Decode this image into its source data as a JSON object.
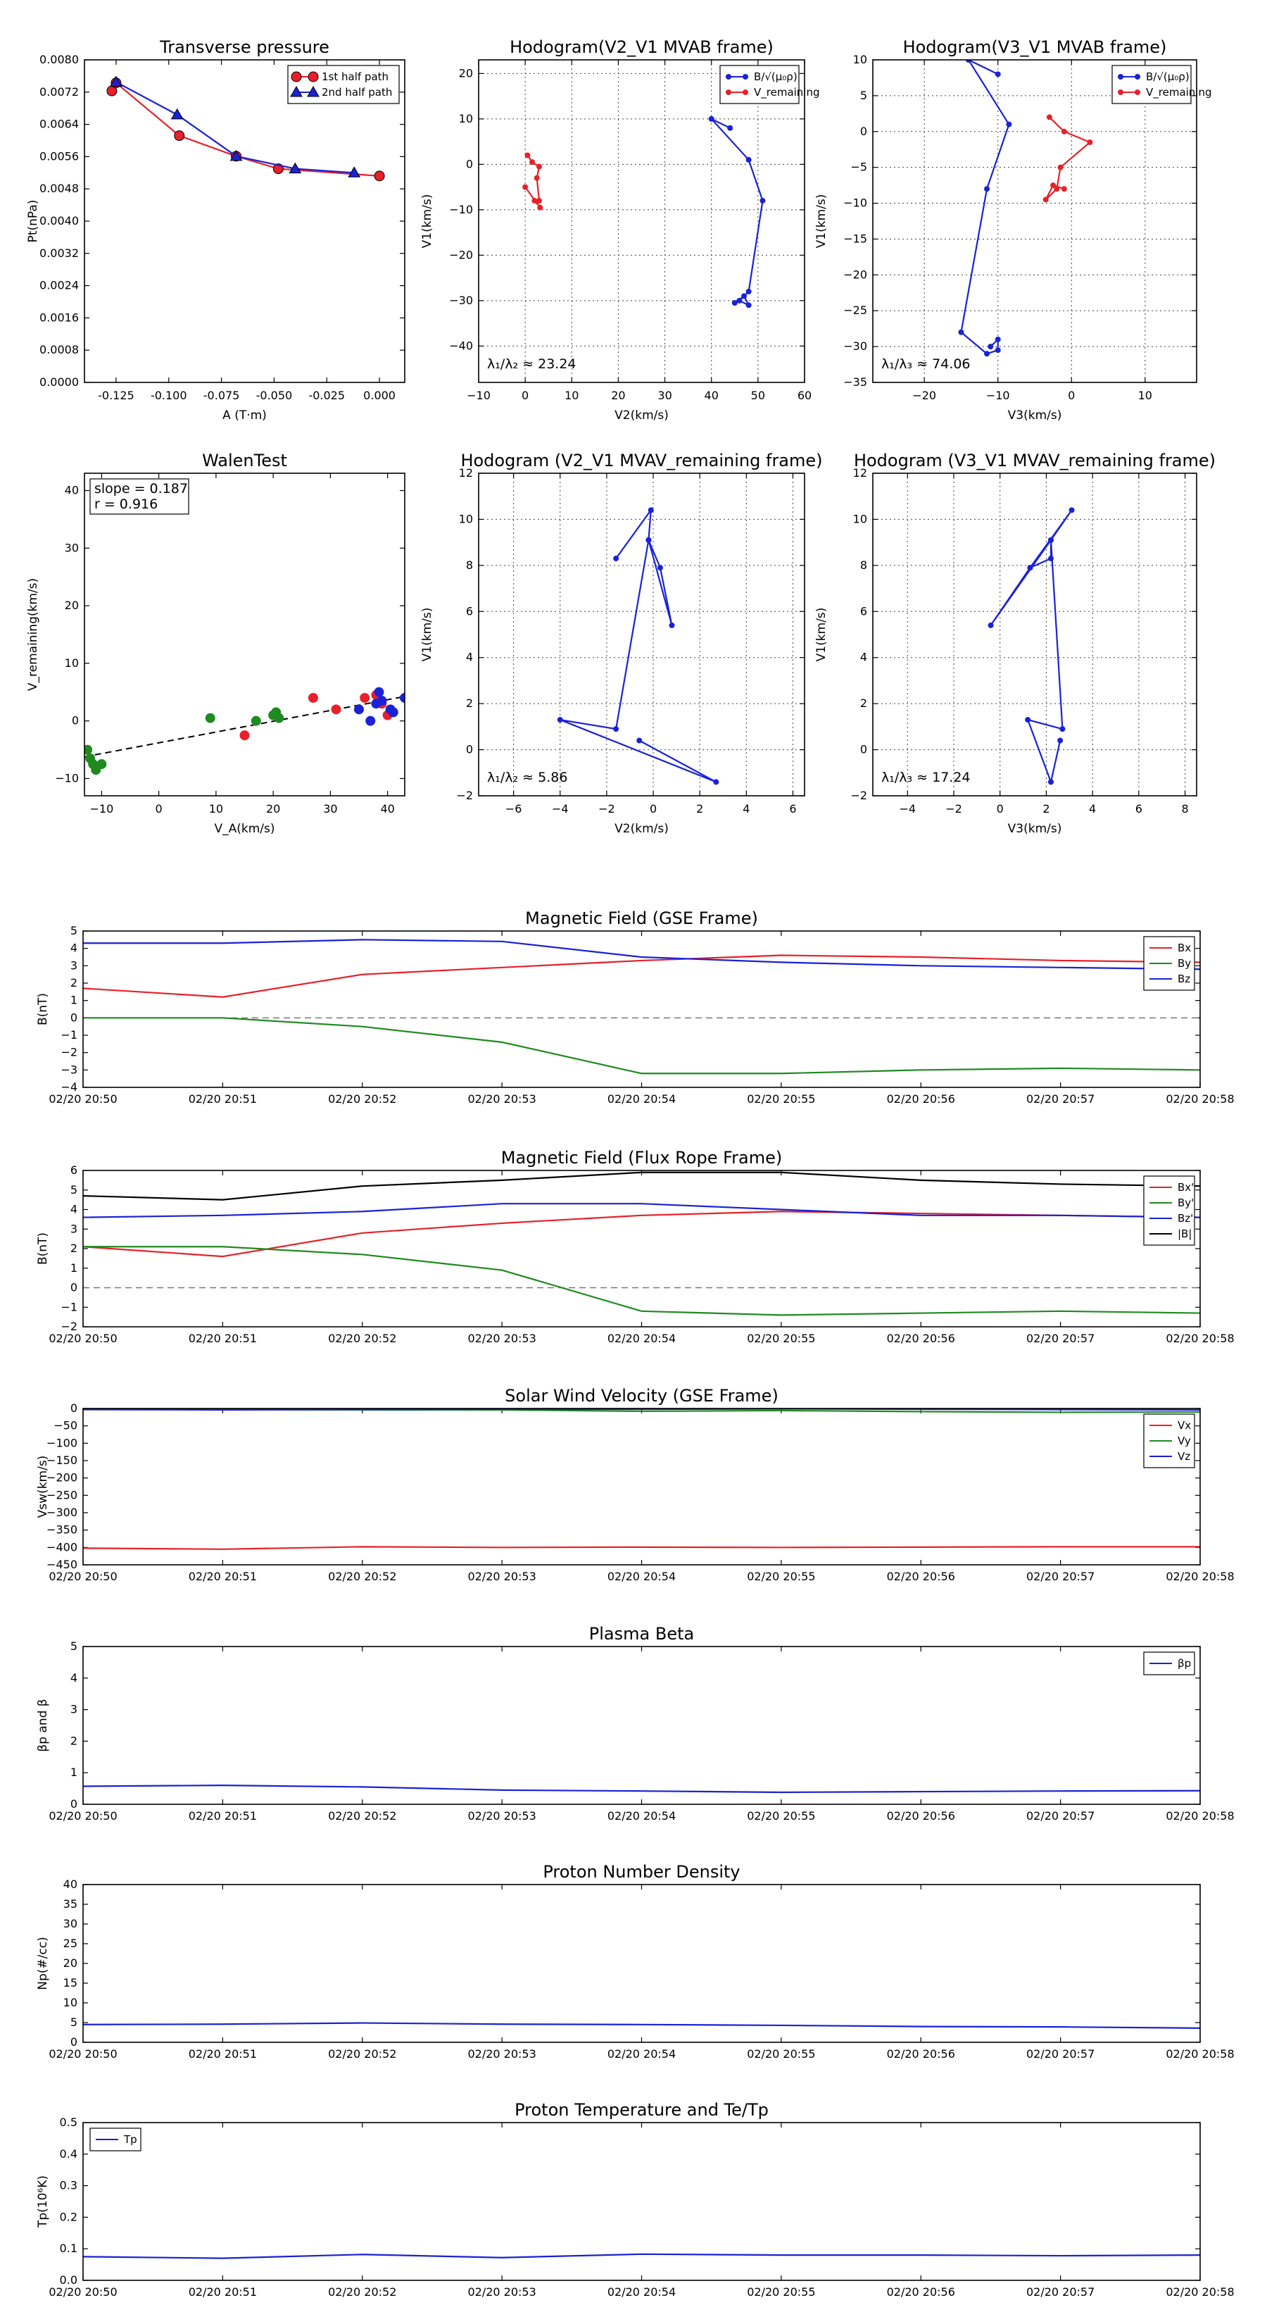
{
  "colors": {
    "red": "#e8202a",
    "blue": "#1a22d6",
    "green": "#1f8a1f",
    "black": "#000000",
    "gray": "#777777"
  },
  "chart_data": [
    {
      "id": "pt",
      "type": "line",
      "title": "Transverse pressure",
      "xlabel": "A (T·m)",
      "ylabel": "Pt(nPa)",
      "xlim": [
        -0.14,
        0.012
      ],
      "ylim": [
        0,
        0.008
      ],
      "xticks": [
        -0.125,
        -0.1,
        -0.075,
        -0.05,
        -0.025,
        0.0
      ],
      "xtick_labels": [
        "-0.125",
        "-0.100",
        "-0.075",
        "-0.050",
        "-0.025",
        "0.000"
      ],
      "yticks": [
        0,
        0.0008,
        0.0016,
        0.0024,
        0.0032,
        0.004,
        0.0048,
        0.0056,
        0.0064,
        0.0072,
        0.008
      ],
      "ytick_labels": [
        "0.0000",
        "0.0008",
        "0.0016",
        "0.0024",
        "0.0032",
        "0.0040",
        "0.0048",
        "0.0056",
        "0.0064",
        "0.0072",
        "0.0080"
      ],
      "grid": false,
      "legend": "top-right",
      "series": [
        {
          "name": "1st half path",
          "color": "red",
          "marker": "circle",
          "x": [
            -0.127,
            -0.125,
            -0.095,
            -0.068,
            -0.048,
            0.0
          ],
          "y": [
            0.00723,
            0.00743,
            0.00612,
            0.00561,
            0.0053,
            0.00512
          ]
        },
        {
          "name": "2nd half path",
          "color": "blue",
          "marker": "triangle",
          "x": [
            -0.125,
            -0.096,
            -0.068,
            -0.04,
            -0.012
          ],
          "y": [
            0.00745,
            0.00664,
            0.00561,
            0.0053,
            0.0052
          ]
        }
      ]
    },
    {
      "id": "hodo1",
      "type": "line",
      "title": "Hodogram(V2_V1 MVAB frame)",
      "xlabel": "V2(km/s)",
      "ylabel": "V1(km/s)",
      "xlim": [
        -10,
        60
      ],
      "ylim": [
        -48,
        23
      ],
      "xticks": [
        -10,
        0,
        10,
        20,
        30,
        40,
        50,
        60
      ],
      "xtick_labels": [
        "−10",
        "0",
        "10",
        "20",
        "30",
        "40",
        "50",
        "60"
      ],
      "yticks": [
        -40,
        -30,
        -20,
        -10,
        0,
        10,
        20
      ],
      "ytick_labels": [
        "−40",
        "−30",
        "−20",
        "−10",
        "0",
        "10",
        "20"
      ],
      "grid": true,
      "legend": "top-right",
      "annotation": "λ₁/λ₂ ≈ 23.24",
      "series": [
        {
          "name": "B/√(μ₀ρ)",
          "color": "blue",
          "marker": "dot",
          "x": [
            44,
            40,
            48,
            51,
            48,
            46,
            48,
            47,
            45
          ],
          "y": [
            8,
            10,
            1,
            -8,
            -28,
            -30,
            -31,
            -29,
            -30.5
          ]
        },
        {
          "name": "V_remaining",
          "color": "red",
          "marker": "dot",
          "x": [
            0.5,
            1.5,
            3,
            2.5,
            3,
            2,
            3.2,
            0
          ],
          "y": [
            2,
            0.5,
            -0.5,
            -3,
            -8,
            -8,
            -9.5,
            -5
          ]
        }
      ]
    },
    {
      "id": "hodo2",
      "type": "line",
      "title": "Hodogram(V3_V1 MVAB frame)",
      "xlabel": "V3(km/s)",
      "ylabel": "V1(km/s)",
      "xlim": [
        -27,
        17
      ],
      "ylim": [
        -35,
        10
      ],
      "xticks": [
        -20,
        -10,
        0,
        10
      ],
      "xtick_labels": [
        "−20",
        "−10",
        "0",
        "10"
      ],
      "yticks": [
        -35,
        -30,
        -25,
        -20,
        -15,
        -10,
        -5,
        0,
        5,
        10
      ],
      "ytick_labels": [
        "−35",
        "−30",
        "−25",
        "−20",
        "−15",
        "−10",
        "−5",
        "0",
        "5",
        "10"
      ],
      "grid": true,
      "legend": "top-right",
      "annotation": "λ₁/λ₃ ≈ 74.06",
      "series": [
        {
          "name": "B/√(μ₀ρ)",
          "color": "blue",
          "marker": "dot",
          "x": [
            -10,
            -14,
            -8.5,
            -11.5,
            -15,
            -11.5,
            -10,
            -10,
            -11
          ],
          "y": [
            8,
            10,
            1,
            -8,
            -28,
            -31,
            -30.5,
            -29,
            -30
          ]
        },
        {
          "name": "V_remaining",
          "color": "red",
          "marker": "dot",
          "x": [
            -3,
            -1,
            2.5,
            -1.5,
            -2,
            -3.5,
            -2.5,
            -1
          ],
          "y": [
            2,
            0,
            -1.5,
            -5,
            -8,
            -9.5,
            -7.5,
            -8
          ]
        }
      ]
    },
    {
      "id": "walen",
      "type": "scatter",
      "title": "WalenTest",
      "xlabel": "V_A(km/s)",
      "ylabel": "V_remaining(km/s)",
      "xlim": [
        -13,
        43
      ],
      "ylim": [
        -13,
        43
      ],
      "xticks": [
        -10,
        0,
        10,
        20,
        30,
        40
      ],
      "xtick_labels": [
        "−10",
        "0",
        "10",
        "20",
        "30",
        "40"
      ],
      "yticks": [
        -10,
        0,
        10,
        20,
        30,
        40
      ],
      "ytick_labels": [
        "−10",
        "0",
        "10",
        "20",
        "30",
        "40"
      ],
      "grid": false,
      "annotation_lines": [
        "slope = 0.187",
        "r = 0.916"
      ],
      "fit": {
        "slope": 0.187,
        "intercept": -3.8
      },
      "series": [
        {
          "color": "green",
          "x": [
            -12.5,
            -12,
            -11.5,
            -11,
            -10,
            9,
            17,
            20,
            20.5,
            21
          ],
          "y": [
            -5,
            -6.5,
            -7.5,
            -8.5,
            -7.5,
            0.5,
            0,
            1,
            1.5,
            0.5
          ]
        },
        {
          "color": "red",
          "x": [
            15,
            27,
            31,
            36,
            38,
            39,
            40
          ],
          "y": [
            -2.5,
            4,
            2,
            4,
            4.5,
            3,
            1
          ]
        },
        {
          "color": "blue",
          "x": [
            35,
            37,
            38,
            38.5,
            39,
            40.5,
            41,
            43
          ],
          "y": [
            2,
            0,
            3,
            5,
            3.5,
            2,
            1.5,
            4
          ]
        }
      ]
    },
    {
      "id": "hodo3",
      "type": "line",
      "title": "Hodogram (V2_V1 MVAV_remaining frame)",
      "xlabel": "V2(km/s)",
      "ylabel": "V1(km/s)",
      "xlim": [
        -7.5,
        6.5
      ],
      "ylim": [
        -2,
        12
      ],
      "xticks": [
        -6,
        -4,
        -2,
        0,
        2,
        4,
        6
      ],
      "xtick_labels": [
        "−6",
        "−4",
        "−2",
        "0",
        "2",
        "4",
        "6"
      ],
      "yticks": [
        -2,
        0,
        2,
        4,
        6,
        8,
        10,
        12
      ],
      "ytick_labels": [
        "−2",
        "0",
        "2",
        "4",
        "6",
        "8",
        "10",
        "12"
      ],
      "grid": true,
      "annotation": "λ₁/λ₂ ≈ 5.86",
      "series": [
        {
          "color": "blue",
          "marker": "dot",
          "x": [
            -1.6,
            -0.1,
            -0.2,
            0.3,
            0.8,
            -0.2,
            -1.6,
            -4,
            2.7,
            -0.6
          ],
          "y": [
            8.3,
            10.4,
            9.1,
            7.9,
            5.4,
            9.1,
            0.9,
            1.3,
            -1.4,
            0.4
          ]
        }
      ]
    },
    {
      "id": "hodo4",
      "type": "line",
      "title": "Hodogram (V3_V1 MVAV_remaining frame)",
      "xlabel": "V3(km/s)",
      "ylabel": "V1(km/s)",
      "xlim": [
        -5.5,
        8.5
      ],
      "ylim": [
        -2,
        12
      ],
      "xticks": [
        -4,
        -2,
        0,
        2,
        4,
        6,
        8
      ],
      "xtick_labels": [
        "−4",
        "−2",
        "0",
        "2",
        "4",
        "6",
        "8"
      ],
      "yticks": [
        -2,
        0,
        2,
        4,
        6,
        8,
        10,
        12
      ],
      "ytick_labels": [
        "−2",
        "0",
        "2",
        "4",
        "6",
        "8",
        "10",
        "12"
      ],
      "grid": true,
      "annotation": "λ₁/λ₃ ≈ 17.24",
      "series": [
        {
          "color": "blue",
          "marker": "dot",
          "x": [
            1.3,
            3.1,
            2.2,
            2.2,
            1.3,
            -0.4,
            2.2,
            2.7,
            1.2,
            2.2,
            2.6
          ],
          "y": [
            7.9,
            10.4,
            9.1,
            8.3,
            7.9,
            5.4,
            9.1,
            0.9,
            1.3,
            -1.4,
            0.4
          ]
        }
      ]
    },
    {
      "id": "bgse",
      "type": "line",
      "title": "Magnetic Field (GSE Frame)",
      "ylabel": "B(nT)",
      "ylim": [
        -4,
        5
      ],
      "yticks": [
        -4,
        -3,
        -2,
        -1,
        0,
        1,
        2,
        3,
        4,
        5
      ],
      "ytick_labels": [
        "−4",
        "−3",
        "−2",
        "−1",
        "0",
        "1",
        "2",
        "3",
        "4",
        "5"
      ],
      "zero_line": true,
      "legend": "top-right",
      "series": [
        {
          "name": "Bx",
          "color": "red",
          "y": [
            1.7,
            1.2,
            2.5,
            2.9,
            3.3,
            3.6,
            3.5,
            3.3,
            3.2
          ]
        },
        {
          "name": "By",
          "color": "green",
          "y": [
            0.0,
            0.0,
            -0.5,
            -1.4,
            -3.2,
            -3.2,
            -3.0,
            -2.9,
            -3.0
          ]
        },
        {
          "name": "Bz",
          "color": "blue",
          "y": [
            4.3,
            4.3,
            4.5,
            4.4,
            3.5,
            3.2,
            3.0,
            2.9,
            2.8
          ]
        }
      ]
    },
    {
      "id": "bfr",
      "type": "line",
      "title": "Magnetic Field (Flux Rope Frame)",
      "ylabel": "B(nT)",
      "ylim": [
        -2,
        6
      ],
      "yticks": [
        -2,
        -1,
        0,
        1,
        2,
        3,
        4,
        5,
        6
      ],
      "ytick_labels": [
        "−2",
        "−1",
        "0",
        "1",
        "2",
        "3",
        "4",
        "5",
        "6"
      ],
      "zero_line": true,
      "legend": "top-right",
      "series": [
        {
          "name": "Bx'",
          "color": "red",
          "y": [
            2.1,
            1.6,
            2.8,
            3.3,
            3.7,
            3.9,
            3.8,
            3.7,
            3.6
          ]
        },
        {
          "name": "By'",
          "color": "green",
          "y": [
            2.1,
            2.1,
            1.7,
            0.9,
            -1.2,
            -1.4,
            -1.3,
            -1.2,
            -1.3
          ]
        },
        {
          "name": "Bz'",
          "color": "blue",
          "y": [
            3.6,
            3.7,
            3.9,
            4.3,
            4.3,
            4.0,
            3.7,
            3.7,
            3.6
          ]
        },
        {
          "name": "|B|",
          "color": "black",
          "y": [
            4.7,
            4.5,
            5.2,
            5.5,
            5.9,
            5.9,
            5.5,
            5.3,
            5.2
          ]
        }
      ]
    },
    {
      "id": "vsw",
      "type": "line",
      "title": "Solar Wind Velocity (GSE Frame)",
      "ylabel": "Vsw(km/s)",
      "ylim": [
        -450,
        0
      ],
      "yticks": [
        -450,
        -400,
        -350,
        -300,
        -250,
        -200,
        -150,
        -100,
        -50,
        0
      ],
      "ytick_labels": [
        "−450",
        "−400",
        "−350",
        "−300",
        "−250",
        "−200",
        "−150",
        "−100",
        "−50",
        "0"
      ],
      "legend": "top-right",
      "series": [
        {
          "name": "Vx",
          "color": "red",
          "y": [
            -402,
            -405,
            -398,
            -400,
            -399,
            -400,
            -399,
            -398,
            -398
          ]
        },
        {
          "name": "Vy",
          "color": "green",
          "y": [
            -2,
            -3,
            -4,
            -4,
            -8,
            -6,
            -9,
            -11,
            -10
          ]
        },
        {
          "name": "Vz",
          "color": "blue",
          "y": [
            -3,
            -4,
            -3,
            -2,
            -2,
            -1,
            -2,
            -3,
            -4
          ]
        }
      ]
    },
    {
      "id": "beta",
      "type": "line",
      "title": "Plasma Beta",
      "ylabel": "βp and β",
      "ylim": [
        0,
        5
      ],
      "yticks": [
        0,
        1,
        2,
        3,
        4,
        5
      ],
      "ytick_labels": [
        "0",
        "1",
        "2",
        "3",
        "4",
        "5"
      ],
      "legend": "top-right",
      "series": [
        {
          "name": "βp",
          "color": "blue",
          "y": [
            0.57,
            0.6,
            0.55,
            0.45,
            0.42,
            0.38,
            0.4,
            0.42,
            0.43
          ]
        }
      ]
    },
    {
      "id": "np",
      "type": "line",
      "title": "Proton Number Density",
      "ylabel": "Np(#/cc)",
      "ylim": [
        0,
        40
      ],
      "yticks": [
        0,
        5,
        10,
        15,
        20,
        25,
        30,
        35,
        40
      ],
      "ytick_labels": [
        "0",
        "5",
        "10",
        "15",
        "20",
        "25",
        "30",
        "35",
        "40"
      ],
      "series": [
        {
          "color": "blue",
          "y": [
            4.5,
            4.6,
            4.9,
            4.6,
            4.5,
            4.3,
            4.0,
            3.9,
            3.6
          ]
        }
      ]
    },
    {
      "id": "tp",
      "type": "line",
      "title": "Proton Temperature and Te/Tp",
      "ylabel": "Tp(10⁶K)",
      "ylim": [
        0,
        0.5
      ],
      "yticks": [
        0,
        0.1,
        0.2,
        0.3,
        0.4,
        0.5
      ],
      "ytick_labels": [
        "0.0",
        "0.1",
        "0.2",
        "0.3",
        "0.4",
        "0.5"
      ],
      "legend": "top-left",
      "series": [
        {
          "name": "Tp",
          "color": "blue",
          "y": [
            0.075,
            0.07,
            0.082,
            0.072,
            0.083,
            0.08,
            0.08,
            0.078,
            0.08
          ]
        }
      ]
    }
  ],
  "time_axis": {
    "labels": [
      "02/20 20:50",
      "02/20 20:51",
      "02/20 20:52",
      "02/20 20:53",
      "02/20 20:54",
      "02/20 20:55",
      "02/20 20:56",
      "02/20 20:57",
      "02/20 20:58"
    ]
  }
}
